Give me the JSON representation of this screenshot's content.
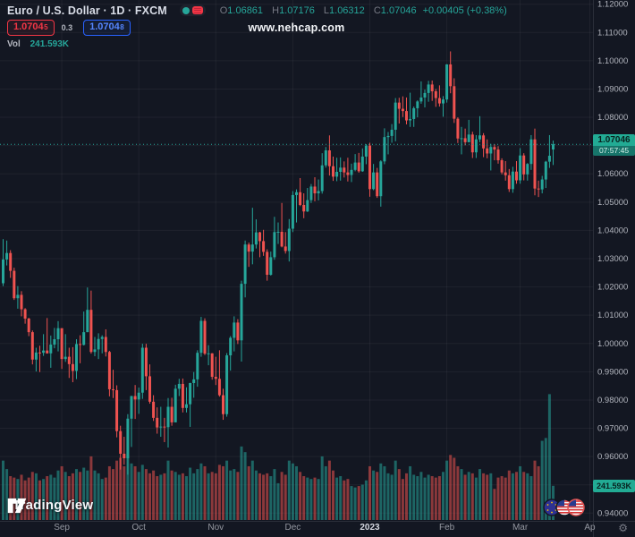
{
  "header": {
    "symbol_title": "Euro / U.S. Dollar · 1D · FXCM",
    "ohlc": {
      "open_label": "O",
      "open": "1.06861",
      "high_label": "H",
      "high": "1.07176",
      "low_label": "L",
      "low": "1.06312",
      "close_label": "C",
      "close": "1.07046",
      "change": "+0.00405 (+0.38%)"
    },
    "bid": {
      "main": "1.0704",
      "sup": "5"
    },
    "spread": "0.3",
    "ask": {
      "main": "1.0704",
      "sup": "8"
    },
    "volume_label": "Vol",
    "volume_value": "241.593K"
  },
  "watermark": "www.nehcap.com",
  "logo_text": "TradingView",
  "price_axis_badge": {
    "price": "1.07046",
    "countdown": "07:57:45"
  },
  "volume_axis_badge": "241.593K",
  "colors": {
    "background": "#131722",
    "up": "#26a69a",
    "down": "#ef5350",
    "grid": "rgba(255,255,255,0.05)",
    "axis_text": "#b2b5be",
    "axis_text_dim": "#9598a1",
    "year_text": "#d5d8e0",
    "separator": "#2a2e39",
    "badge": "#22ab94",
    "bid_red": "#f23645",
    "ask_blue": "#2962ff",
    "price_line": "#26a69a"
  },
  "chart_data": {
    "type": "candlestick+volume",
    "symbol": "EURUSD",
    "interval": "1D",
    "exchange": "FXCM",
    "last_price": 1.07046,
    "price_axis": {
      "min": 0.94,
      "max": 1.12,
      "tick_step": 0.01,
      "decimals": 5
    },
    "x_axis": {
      "labels": [
        {
          "text": "Sep",
          "index": 16
        },
        {
          "text": "Oct",
          "index": 37
        },
        {
          "text": "Nov",
          "index": 58
        },
        {
          "text": "Dec",
          "index": 79
        },
        {
          "text": "2023",
          "index": 100,
          "year": true
        },
        {
          "text": "Feb",
          "index": 121
        },
        {
          "text": "Mar",
          "index": 141
        },
        {
          "text": "Ap",
          "index": 160
        }
      ]
    },
    "candle_fields": [
      "open",
      "high",
      "low",
      "close",
      "volume_k"
    ],
    "candles": [
      [
        1.0213,
        1.0369,
        1.0203,
        1.0297,
        420
      ],
      [
        1.0297,
        1.0364,
        1.0276,
        1.032,
        360
      ],
      [
        1.032,
        1.033,
        1.0232,
        1.0257,
        310
      ],
      [
        1.0257,
        1.0268,
        1.0154,
        1.016,
        300
      ],
      [
        1.016,
        1.0203,
        1.0123,
        1.0172,
        290
      ],
      [
        1.0172,
        1.0185,
        1.0096,
        1.0121,
        320
      ],
      [
        1.0121,
        1.0125,
        1.007,
        1.0088,
        280
      ],
      [
        1.0088,
        1.0091,
        1.0026,
        1.004,
        300
      ],
      [
        1.004,
        1.0046,
        0.9926,
        0.9943,
        340
      ],
      [
        0.9943,
        0.9985,
        0.9901,
        0.9968,
        330
      ],
      [
        0.9968,
        0.9992,
        0.9899,
        0.9967,
        280
      ],
      [
        0.9967,
        1.0033,
        0.9956,
        0.9975,
        290
      ],
      [
        0.9975,
        1.009,
        0.9964,
        0.9965,
        310
      ],
      [
        0.9965,
        1.0028,
        0.9914,
        0.9996,
        320
      ],
      [
        0.9996,
        1.0055,
        0.9983,
        1.0015,
        300
      ],
      [
        1.0015,
        1.0079,
        0.9972,
        1.0054,
        350
      ],
      [
        1.0054,
        1.0054,
        0.991,
        0.9945,
        380
      ],
      [
        0.9945,
        1.0033,
        0.9935,
        0.9953,
        340
      ],
      [
        0.9953,
        0.9985,
        0.9878,
        0.9927,
        310
      ],
      [
        0.9927,
        0.9987,
        0.9863,
        0.9903,
        330
      ],
      [
        0.9903,
        1.0015,
        0.9874,
        0.9998,
        360
      ],
      [
        0.9998,
        1.0029,
        0.993,
        0.9995,
        340
      ],
      [
        0.9995,
        1.0113,
        0.9993,
        1.004,
        370
      ],
      [
        1.004,
        1.0198,
        1.004,
        1.0119,
        350
      ],
      [
        1.0119,
        1.0187,
        0.9964,
        0.997,
        450
      ],
      [
        0.997,
        1.0023,
        0.9955,
        0.9979,
        350
      ],
      [
        0.9979,
        1.0036,
        0.9945,
        1.0016,
        330
      ],
      [
        1.0016,
        1.0029,
        0.9965,
        1.0023,
        290
      ],
      [
        1.0023,
        1.005,
        0.9954,
        0.997,
        300
      ],
      [
        0.997,
        0.9974,
        0.9813,
        0.9838,
        380
      ],
      [
        0.9838,
        0.9907,
        0.9807,
        0.9835,
        360
      ],
      [
        0.9835,
        0.9852,
        0.9668,
        0.969,
        420
      ],
      [
        0.969,
        0.9709,
        0.9554,
        0.961,
        440
      ],
      [
        0.961,
        0.967,
        0.9571,
        0.9594,
        380
      ],
      [
        0.9594,
        0.975,
        0.9536,
        0.9734,
        460
      ],
      [
        0.9734,
        0.9815,
        0.9634,
        0.9814,
        400
      ],
      [
        0.9814,
        0.9853,
        0.9733,
        0.9802,
        380
      ],
      [
        0.9802,
        0.9844,
        0.9751,
        0.9826,
        340
      ],
      [
        0.9826,
        0.9999,
        0.9804,
        0.9985,
        390
      ],
      [
        0.9985,
        0.9999,
        0.9835,
        0.9884,
        360
      ],
      [
        0.9884,
        0.9926,
        0.9787,
        0.9794,
        330
      ],
      [
        0.9794,
        0.9817,
        0.9726,
        0.9737,
        350
      ],
      [
        0.9737,
        0.9774,
        0.9681,
        0.9703,
        310
      ],
      [
        0.9703,
        0.9776,
        0.967,
        0.9706,
        320
      ],
      [
        0.9706,
        0.9737,
        0.9651,
        0.9704,
        330
      ],
      [
        0.9704,
        0.9807,
        0.9632,
        0.9776,
        420
      ],
      [
        0.9776,
        0.9808,
        0.9709,
        0.9721,
        350
      ],
      [
        0.9721,
        0.9854,
        0.9721,
        0.984,
        340
      ],
      [
        0.984,
        0.9875,
        0.9814,
        0.9857,
        320
      ],
      [
        0.9857,
        0.9876,
        0.9756,
        0.9772,
        330
      ],
      [
        0.9772,
        0.9845,
        0.9756,
        0.9785,
        310
      ],
      [
        0.9785,
        0.9861,
        0.9705,
        0.986,
        370
      ],
      [
        0.986,
        0.9899,
        0.9808,
        0.9873,
        330
      ],
      [
        0.9873,
        0.9976,
        0.9847,
        0.9967,
        360
      ],
      [
        0.9967,
        1.0094,
        0.9953,
        1.008,
        400
      ],
      [
        1.008,
        1.0089,
        0.9959,
        0.9964,
        380
      ],
      [
        0.9964,
        0.9994,
        0.9923,
        0.9965,
        330
      ],
      [
        0.9965,
        0.9966,
        0.9872,
        0.9882,
        340
      ],
      [
        0.9882,
        0.9953,
        0.9853,
        0.9875,
        330
      ],
      [
        0.9875,
        0.9976,
        0.9812,
        0.9817,
        390
      ],
      [
        0.9817,
        0.984,
        0.973,
        0.975,
        380
      ],
      [
        0.975,
        0.9966,
        0.9741,
        0.9958,
        420
      ],
      [
        0.9958,
        1.0026,
        0.9904,
        1.002,
        350
      ],
      [
        1.002,
        1.0096,
        0.9972,
        1.0074,
        360
      ],
      [
        1.0074,
        1.0086,
        0.9998,
        1.0011,
        340
      ],
      [
        1.0011,
        1.0222,
        0.9936,
        1.0211,
        520
      ],
      [
        1.0211,
        1.0364,
        1.0163,
        1.035,
        480
      ],
      [
        1.035,
        1.0357,
        1.0271,
        1.0325,
        380
      ],
      [
        1.0325,
        1.048,
        1.028,
        1.035,
        420
      ],
      [
        1.035,
        1.0439,
        1.0336,
        1.0393,
        350
      ],
      [
        1.0393,
        1.0395,
        1.0305,
        1.0362,
        330
      ],
      [
        1.0362,
        1.0402,
        1.031,
        1.0324,
        320
      ],
      [
        1.0324,
        1.0333,
        1.0222,
        1.0243,
        330
      ],
      [
        1.0243,
        1.0325,
        1.024,
        1.0305,
        310
      ],
      [
        1.0305,
        1.0448,
        1.0296,
        1.0394,
        360
      ],
      [
        1.0394,
        1.0428,
        1.0352,
        1.0395,
        260
      ],
      [
        1.0395,
        1.0497,
        1.034,
        1.0343,
        340
      ],
      [
        1.0343,
        1.0394,
        1.0318,
        1.0327,
        320
      ],
      [
        1.0327,
        1.044,
        1.029,
        1.0406,
        420
      ],
      [
        1.0406,
        1.0539,
        1.0394,
        1.0525,
        400
      ],
      [
        1.0525,
        1.0545,
        1.0428,
        1.0535,
        380
      ],
      [
        1.0535,
        1.0585,
        1.0486,
        1.049,
        340
      ],
      [
        1.049,
        1.0531,
        1.0443,
        1.0467,
        310
      ],
      [
        1.0467,
        1.055,
        1.0465,
        1.0507,
        300
      ],
      [
        1.0507,
        1.0564,
        1.0497,
        1.0555,
        290
      ],
      [
        1.0555,
        1.0588,
        1.0503,
        1.0531,
        300
      ],
      [
        1.0531,
        1.058,
        1.0506,
        1.0539,
        290
      ],
      [
        1.0539,
        1.0673,
        1.053,
        1.063,
        450
      ],
      [
        1.063,
        1.0695,
        1.0622,
        1.0683,
        380
      ],
      [
        1.0683,
        1.0736,
        1.0594,
        1.0627,
        420
      ],
      [
        1.0627,
        1.0661,
        1.0575,
        1.059,
        350
      ],
      [
        1.059,
        1.0657,
        1.0574,
        1.0607,
        300
      ],
      [
        1.0607,
        1.0658,
        1.0576,
        1.0622,
        310
      ],
      [
        1.0622,
        1.0644,
        1.0587,
        1.0605,
        280
      ],
      [
        1.0605,
        1.0657,
        1.0573,
        1.0596,
        290
      ],
      [
        1.0596,
        1.0636,
        1.0571,
        1.0614,
        240
      ],
      [
        1.0614,
        1.067,
        1.0609,
        1.064,
        230
      ],
      [
        1.064,
        1.0674,
        1.0604,
        1.0609,
        240
      ],
      [
        1.0609,
        1.069,
        1.0607,
        1.0661,
        250
      ],
      [
        1.0661,
        1.0705,
        1.0634,
        1.07,
        280
      ],
      [
        1.07,
        1.071,
        1.0519,
        1.0546,
        380
      ],
      [
        1.0546,
        1.0635,
        1.0542,
        1.0605,
        350
      ],
      [
        1.0605,
        1.0621,
        1.0515,
        1.0521,
        340
      ],
      [
        1.0521,
        1.0648,
        1.0484,
        1.0644,
        400
      ],
      [
        1.0644,
        1.0761,
        1.0634,
        1.073,
        380
      ],
      [
        1.073,
        1.0748,
        1.0669,
        1.0734,
        330
      ],
      [
        1.0734,
        1.0776,
        1.071,
        1.0756,
        320
      ],
      [
        1.0756,
        1.0868,
        1.0715,
        1.0852,
        420
      ],
      [
        1.0852,
        1.0869,
        1.0778,
        1.083,
        360
      ],
      [
        1.083,
        1.0874,
        1.0801,
        1.0822,
        290
      ],
      [
        1.0822,
        1.087,
        1.0775,
        1.0789,
        330
      ],
      [
        1.0789,
        1.0887,
        1.0766,
        1.0794,
        380
      ],
      [
        1.0794,
        1.0838,
        1.0766,
        1.0832,
        320
      ],
      [
        1.0832,
        1.086,
        1.08,
        1.0856,
        310
      ],
      [
        1.0856,
        1.0927,
        1.0848,
        1.087,
        340
      ],
      [
        1.087,
        1.0898,
        1.0835,
        1.0886,
        300
      ],
      [
        1.0886,
        1.0929,
        1.0855,
        1.0916,
        320
      ],
      [
        1.0916,
        1.093,
        1.0858,
        1.0892,
        310
      ],
      [
        1.0892,
        1.09,
        1.0837,
        1.0868,
        300
      ],
      [
        1.0868,
        1.0913,
        1.0838,
        1.0849,
        310
      ],
      [
        1.0849,
        1.0875,
        1.0802,
        1.0863,
        340
      ],
      [
        1.0863,
        1.0988,
        1.0852,
        1.0987,
        420
      ],
      [
        1.0987,
        1.1033,
        1.0885,
        1.091,
        460
      ],
      [
        1.091,
        1.0938,
        1.078,
        1.0795,
        440
      ],
      [
        1.0795,
        1.08,
        1.0709,
        1.0725,
        380
      ],
      [
        1.0725,
        1.0766,
        1.0669,
        1.0726,
        360
      ],
      [
        1.0726,
        1.076,
        1.0701,
        1.0712,
        320
      ],
      [
        1.0712,
        1.0791,
        1.0711,
        1.0739,
        340
      ],
      [
        1.0739,
        1.0749,
        1.0656,
        1.0676,
        330
      ],
      [
        1.0676,
        1.0737,
        1.0656,
        1.0722,
        300
      ],
      [
        1.0722,
        1.0804,
        1.0712,
        1.0736,
        360
      ],
      [
        1.0736,
        1.0744,
        1.0659,
        1.069,
        330
      ],
      [
        1.069,
        1.0722,
        1.0655,
        1.0672,
        320
      ],
      [
        1.0672,
        1.0706,
        1.0612,
        1.0695,
        330
      ],
      [
        1.0695,
        1.0705,
        1.0648,
        1.0686,
        220
      ],
      [
        1.0686,
        1.0698,
        1.0636,
        1.0648,
        300
      ],
      [
        1.0648,
        1.0655,
        1.0598,
        1.0605,
        310
      ],
      [
        1.0605,
        1.0645,
        1.0576,
        1.0595,
        300
      ],
      [
        1.0595,
        1.0617,
        1.0536,
        1.0546,
        350
      ],
      [
        1.0546,
        1.0625,
        1.0533,
        1.0608,
        330
      ],
      [
        1.0608,
        1.0645,
        1.0565,
        1.0577,
        340
      ],
      [
        1.0577,
        1.0691,
        1.0565,
        1.0665,
        380
      ],
      [
        1.0665,
        1.0673,
        1.0577,
        1.0598,
        340
      ],
      [
        1.0598,
        1.0638,
        1.0576,
        1.0635,
        330
      ],
      [
        1.0635,
        1.0737,
        1.0614,
        1.0722,
        310
      ],
      [
        1.0722,
        1.076,
        1.0524,
        1.0548,
        420
      ],
      [
        1.0548,
        1.0576,
        1.0518,
        1.0545,
        380
      ],
      [
        1.0545,
        1.0593,
        1.0531,
        1.058,
        560
      ],
      [
        1.058,
        1.0646,
        1.055,
        1.0643,
        580
      ],
      [
        1.0643,
        1.0737,
        1.0621,
        1.0664,
        890
      ],
      [
        1.06861,
        1.07176,
        1.06312,
        1.07046,
        241.593
      ]
    ]
  }
}
